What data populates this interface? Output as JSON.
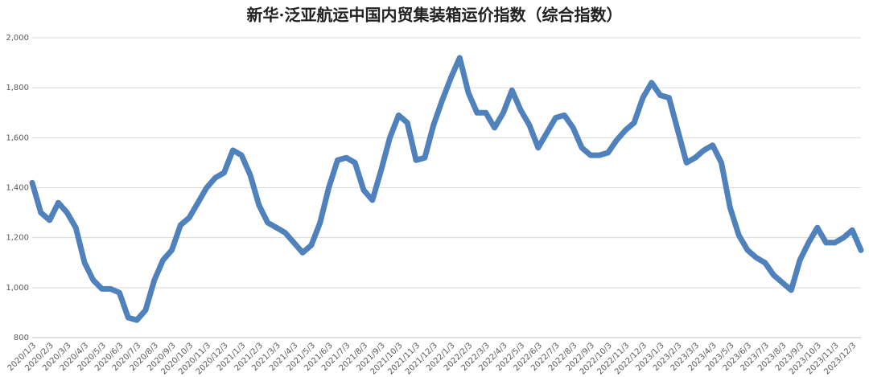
{
  "chart_data": {
    "type": "line",
    "title": "新华·泛亚航运中国内贸集装箱运价指数（综合指数）",
    "categories": [
      "2020/1/3",
      null,
      "2020/2/3",
      null,
      "2020/3/3",
      null,
      "2020/4/3",
      null,
      "2020/5/3",
      null,
      "2020/6/3",
      null,
      "2020/7/3",
      null,
      "2020/8/3",
      null,
      "2020/9/3",
      null,
      "2020/10/3",
      null,
      "2020/11/3",
      null,
      "2020/12/3",
      null,
      "2021/1/3",
      null,
      "2021/2/3",
      null,
      "2021/3/3",
      null,
      "2021/4/3",
      null,
      "2021/5/3",
      null,
      "2021/6/3",
      null,
      "2021/7/3",
      null,
      "2021/8/3",
      null,
      "2021/9/3",
      null,
      "2021/10/3",
      null,
      "2021/11/3",
      null,
      "2021/12/3",
      null,
      "2022/1/3",
      null,
      "2022/2/3",
      null,
      "2022/3/3",
      null,
      "2022/4/3",
      null,
      "2022/5/3",
      null,
      "2022/6/3",
      null,
      "2022/7/3",
      null,
      "2022/8/3",
      null,
      "2022/9/3",
      null,
      "2022/10/3",
      null,
      "2022/11/3",
      null,
      "2022/12/3",
      null,
      "2023/1/3",
      null,
      "2023/2/3",
      null,
      "2023/3/3",
      null,
      "2023/4/3",
      null,
      "2023/5/3",
      null,
      "2023/6/3",
      null,
      "2023/7/3",
      null,
      "2023/8/3",
      null,
      "2023/9/3",
      null,
      "2023/10/3",
      null,
      "2023/11/3",
      null,
      "2023/12/3",
      null
    ],
    "values": [
      1420,
      1300,
      1270,
      1340,
      1300,
      1240,
      1100,
      1030,
      995,
      995,
      980,
      880,
      870,
      910,
      1030,
      1110,
      1150,
      1250,
      1280,
      1340,
      1400,
      1440,
      1460,
      1550,
      1530,
      1450,
      1330,
      1260,
      1240,
      1220,
      1180,
      1140,
      1170,
      1260,
      1400,
      1510,
      1520,
      1500,
      1390,
      1350,
      1470,
      1600,
      1690,
      1660,
      1510,
      1520,
      1650,
      1750,
      1840,
      1920,
      1780,
      1700,
      1700,
      1640,
      1700,
      1790,
      1710,
      1650,
      1560,
      1620,
      1680,
      1690,
      1640,
      1560,
      1530,
      1530,
      1540,
      1590,
      1630,
      1660,
      1760,
      1820,
      1770,
      1760,
      1630,
      1500,
      1520,
      1550,
      1570,
      1500,
      1320,
      1210,
      1150,
      1120,
      1100,
      1050,
      1020,
      990,
      1110,
      1180,
      1240,
      1180,
      1180,
      1200,
      1230,
      1150
    ],
    "color": "#4f81bd",
    "ylim": [
      800,
      2000
    ],
    "yticks": [
      800,
      {
        "value": 1000,
        "label": "1,000"
      },
      {
        "value": 1200,
        "label": "1,200"
      },
      {
        "value": 1400,
        "label": "1,400"
      },
      {
        "value": 1600,
        "label": "1,600"
      },
      {
        "value": 1800,
        "label": "1,800"
      },
      {
        "value": 2000,
        "label": "2,000"
      }
    ],
    "grid": true
  }
}
